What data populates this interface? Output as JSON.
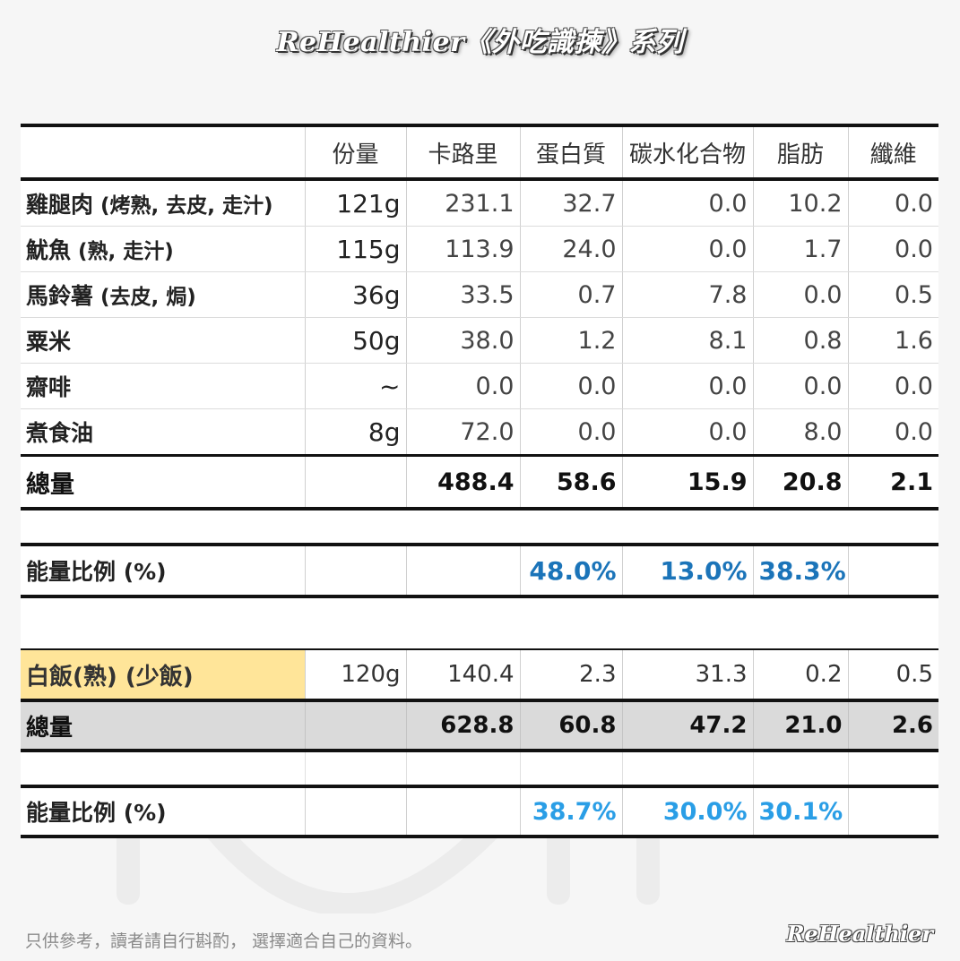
{
  "header": {
    "title": "ReHealthier《外吃識揀》系列"
  },
  "columns": [
    "",
    "份量",
    "卡路里",
    "蛋白質",
    "碳水化合物",
    "脂肪",
    "纖維"
  ],
  "items": [
    {
      "name": "雞腿肉",
      "sub": " (烤熟, 去皮, 走汁)",
      "serving": "121g",
      "cal": "231.1",
      "protein": "32.7",
      "carb": "0.0",
      "fat": "10.2",
      "fiber": "0.0"
    },
    {
      "name": "魷魚",
      "sub": " (熟, 走汁)",
      "serving": "115g",
      "cal": "113.9",
      "protein": "24.0",
      "carb": "0.0",
      "fat": "1.7",
      "fiber": "0.0"
    },
    {
      "name": "馬鈴薯",
      "sub": " (去皮, 焗)",
      "serving": "36g",
      "cal": "33.5",
      "protein": "0.7",
      "carb": "7.8",
      "fat": "0.0",
      "fiber": "0.5"
    },
    {
      "name": "粟米",
      "sub": "",
      "serving": "50g",
      "cal": "38.0",
      "protein": "1.2",
      "carb": "8.1",
      "fat": "0.8",
      "fiber": "1.6"
    },
    {
      "name": "齋啡",
      "sub": "",
      "serving": "~",
      "cal": "0.0",
      "protein": "0.0",
      "carb": "0.0",
      "fat": "0.0",
      "fiber": "0.0"
    },
    {
      "name": "煮食油",
      "sub": "",
      "serving": "8g",
      "cal": "72.0",
      "protein": "0.0",
      "carb": "0.0",
      "fat": "8.0",
      "fiber": "0.0"
    }
  ],
  "total": {
    "label": "總量",
    "cal": "488.4",
    "protein": "58.6",
    "carb": "15.9",
    "fat": "20.8",
    "fiber": "2.1"
  },
  "ratio": {
    "label": "能量比例 (%)",
    "protein": "48.0%",
    "carb": "13.0%",
    "fat": "38.3%"
  },
  "rice": {
    "label": "白飯(熟) (少飯)",
    "serving": "120g",
    "cal": "140.4",
    "protein": "2.3",
    "carb": "31.3",
    "fat": "0.2",
    "fiber": "0.5"
  },
  "total2": {
    "label": "總量",
    "cal": "628.8",
    "protein": "60.8",
    "carb": "47.2",
    "fat": "21.0",
    "fiber": "2.6"
  },
  "ratio2": {
    "label": "能量比例 (%)",
    "protein": "38.7%",
    "carb": "30.0%",
    "fat": "30.1%"
  },
  "footer": {
    "disclaimer": "只供參考，讀者請自行斟酌， 選擇適合自己的資料。",
    "logo": "ReHealthier"
  }
}
